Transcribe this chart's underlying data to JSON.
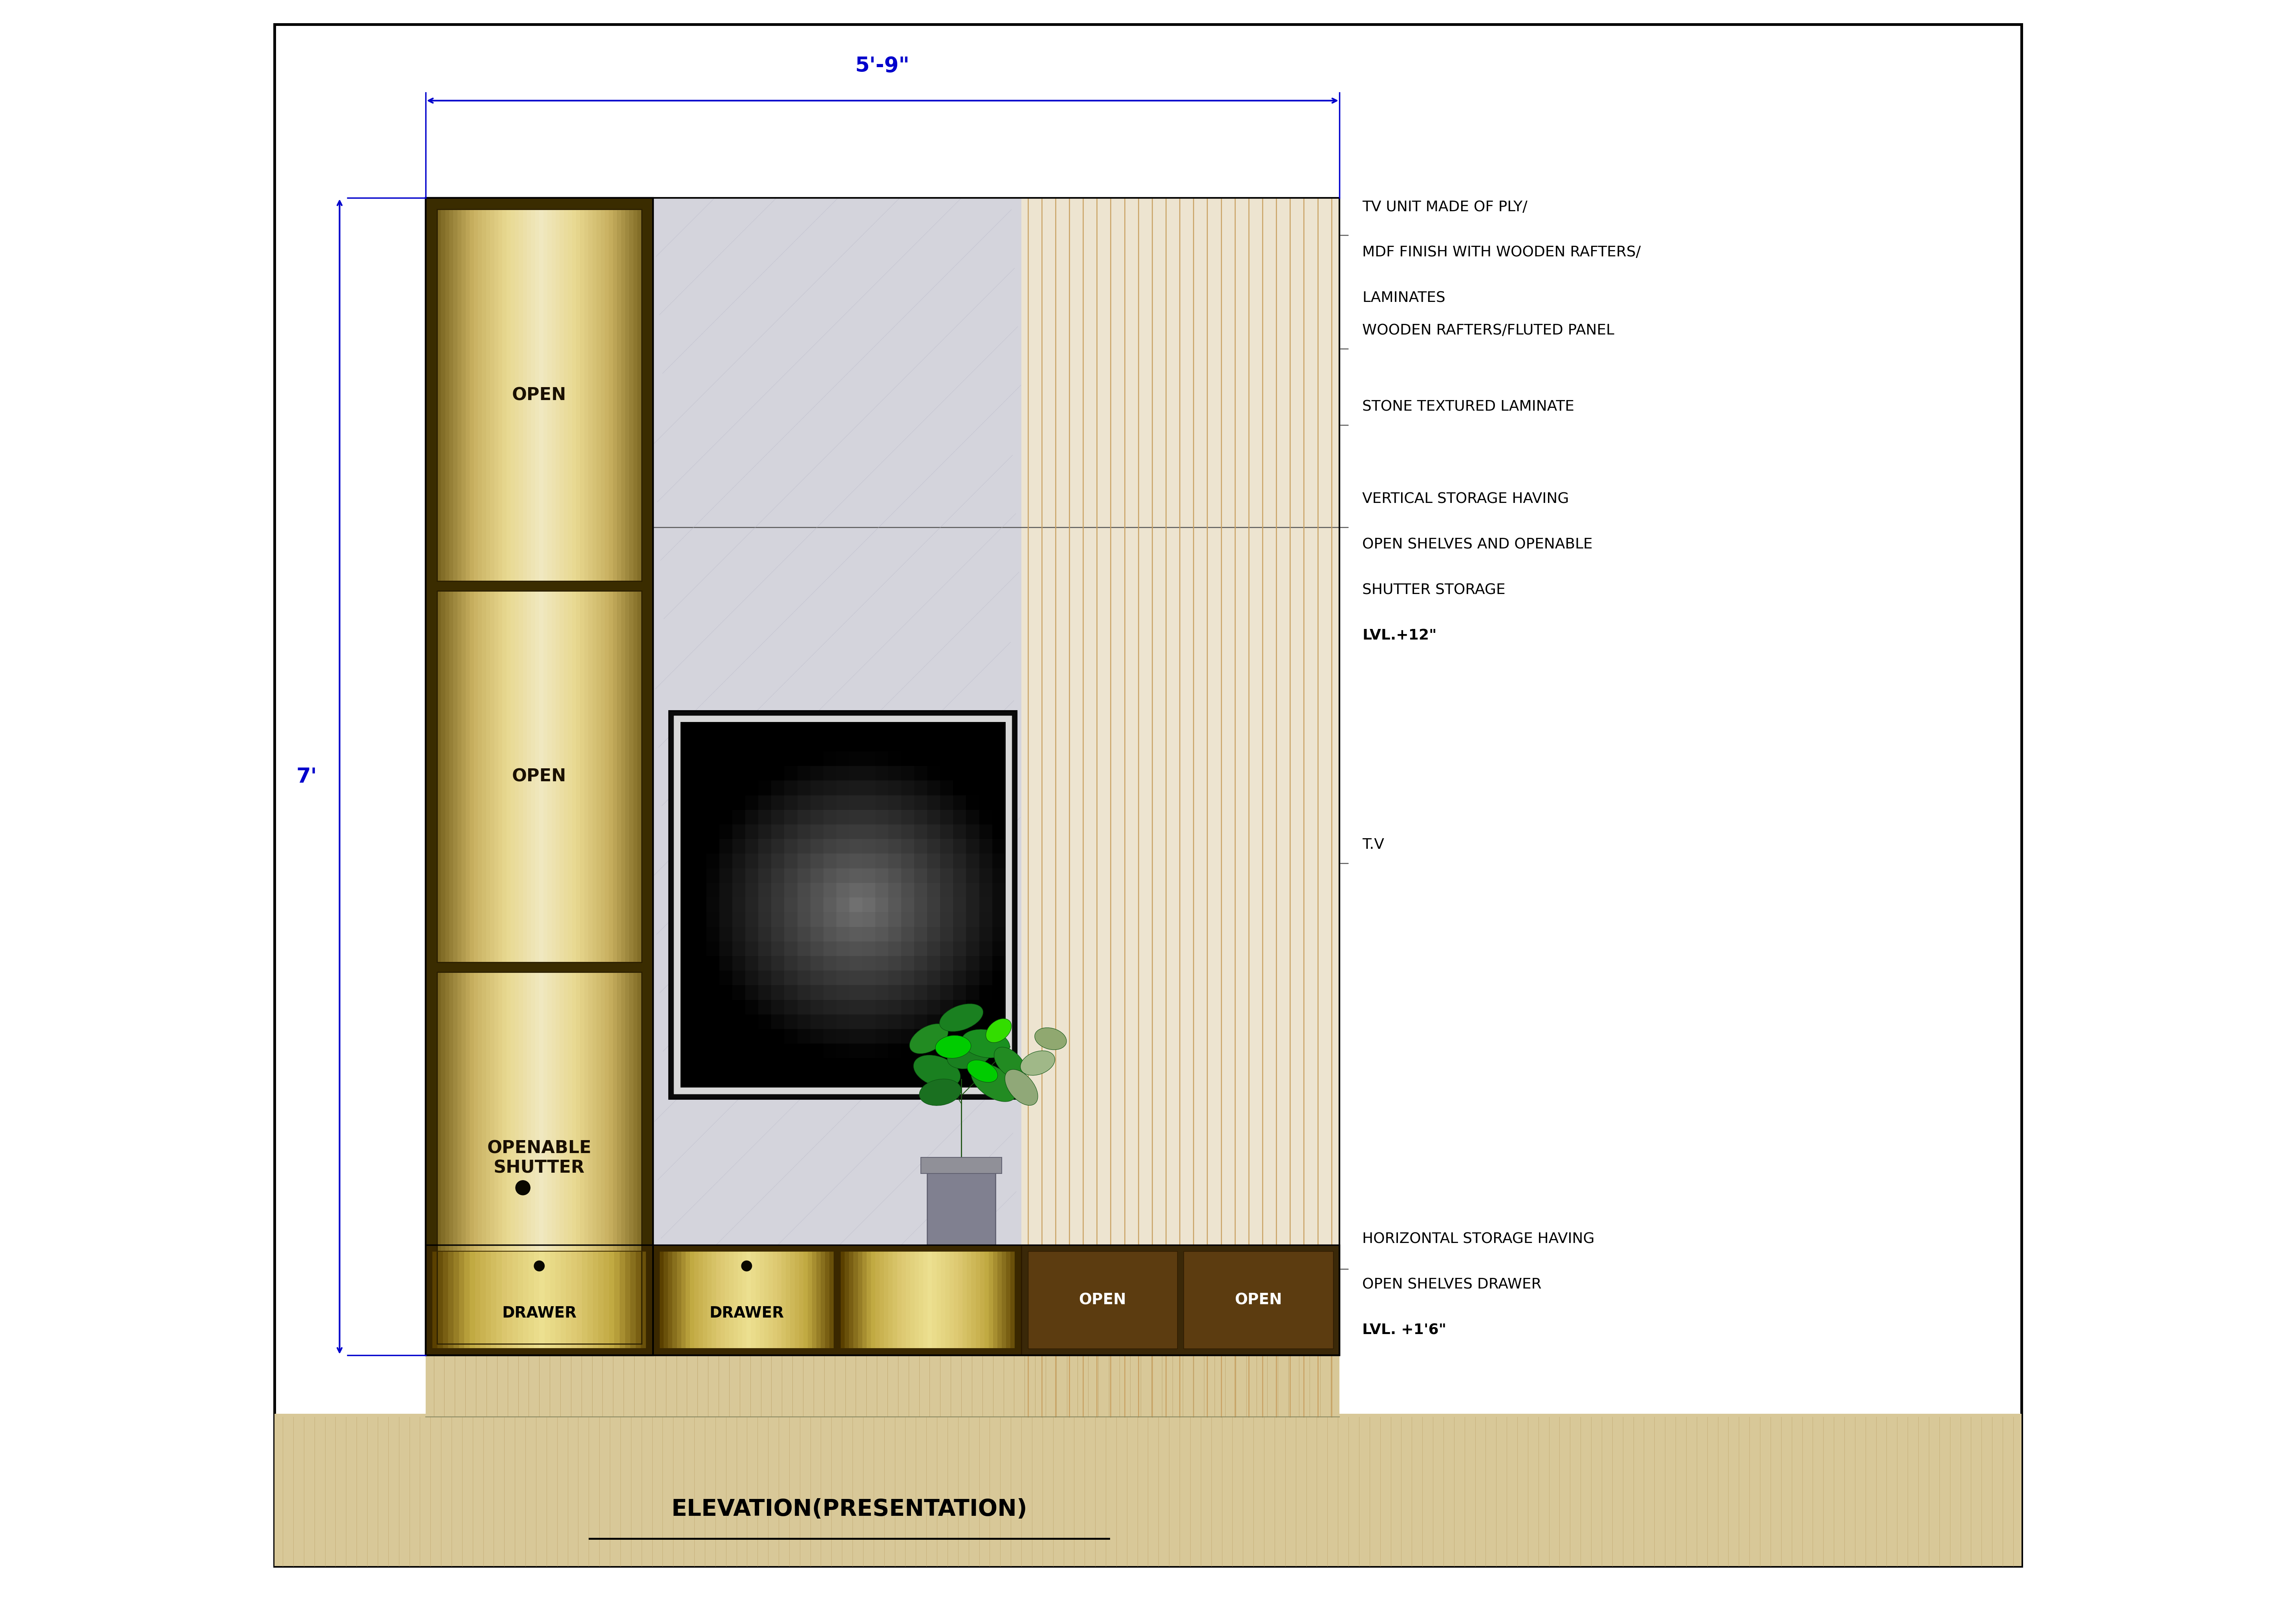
{
  "fig_width": 58.47,
  "fig_height": 41.34,
  "bg_color": "#ffffff",
  "dim_color": "#0000cc",
  "title": "ELEVATION(PRESENTATION)",
  "dim_width_label": "5'-9\"",
  "dim_height_label": "7'",
  "wall_color": "#d8d8e2",
  "fluted_bg": "#ede4d0",
  "fluted_line_dark": "#c8a060",
  "fluted_line_light": "#ddc898",
  "stone_color": "#d4d4dc",
  "col_frame_color": "#3a2c00",
  "gold_grad_stops": [
    "#7a6520",
    "#c8b060",
    "#e8d890",
    "#f0e8c0",
    "#e8d890",
    "#c8b060",
    "#7a6520"
  ],
  "shelf_border": "#2a1e00",
  "tv_frame_outer": "#111111",
  "tv_frame_white": "#e8e8e8",
  "tv_screen_center": "#444444",
  "tv_screen_edge": "#000000",
  "drawer_gold": [
    "#5a4000",
    "#c0a840",
    "#dcc870",
    "#ece090",
    "#dcc870",
    "#c0a840",
    "#5a4000"
  ],
  "drawer_dark_bg": "#4a3410",
  "drawer_dark_shelf": "#5c3c10",
  "pot_color": "#808090",
  "pot_rim": "#909098",
  "leaf_dark": "#1a7020",
  "leaf_bright": "#22cc22",
  "floor_strip_color": "#d8c898",
  "floor_strip_line": "#c0a870"
}
